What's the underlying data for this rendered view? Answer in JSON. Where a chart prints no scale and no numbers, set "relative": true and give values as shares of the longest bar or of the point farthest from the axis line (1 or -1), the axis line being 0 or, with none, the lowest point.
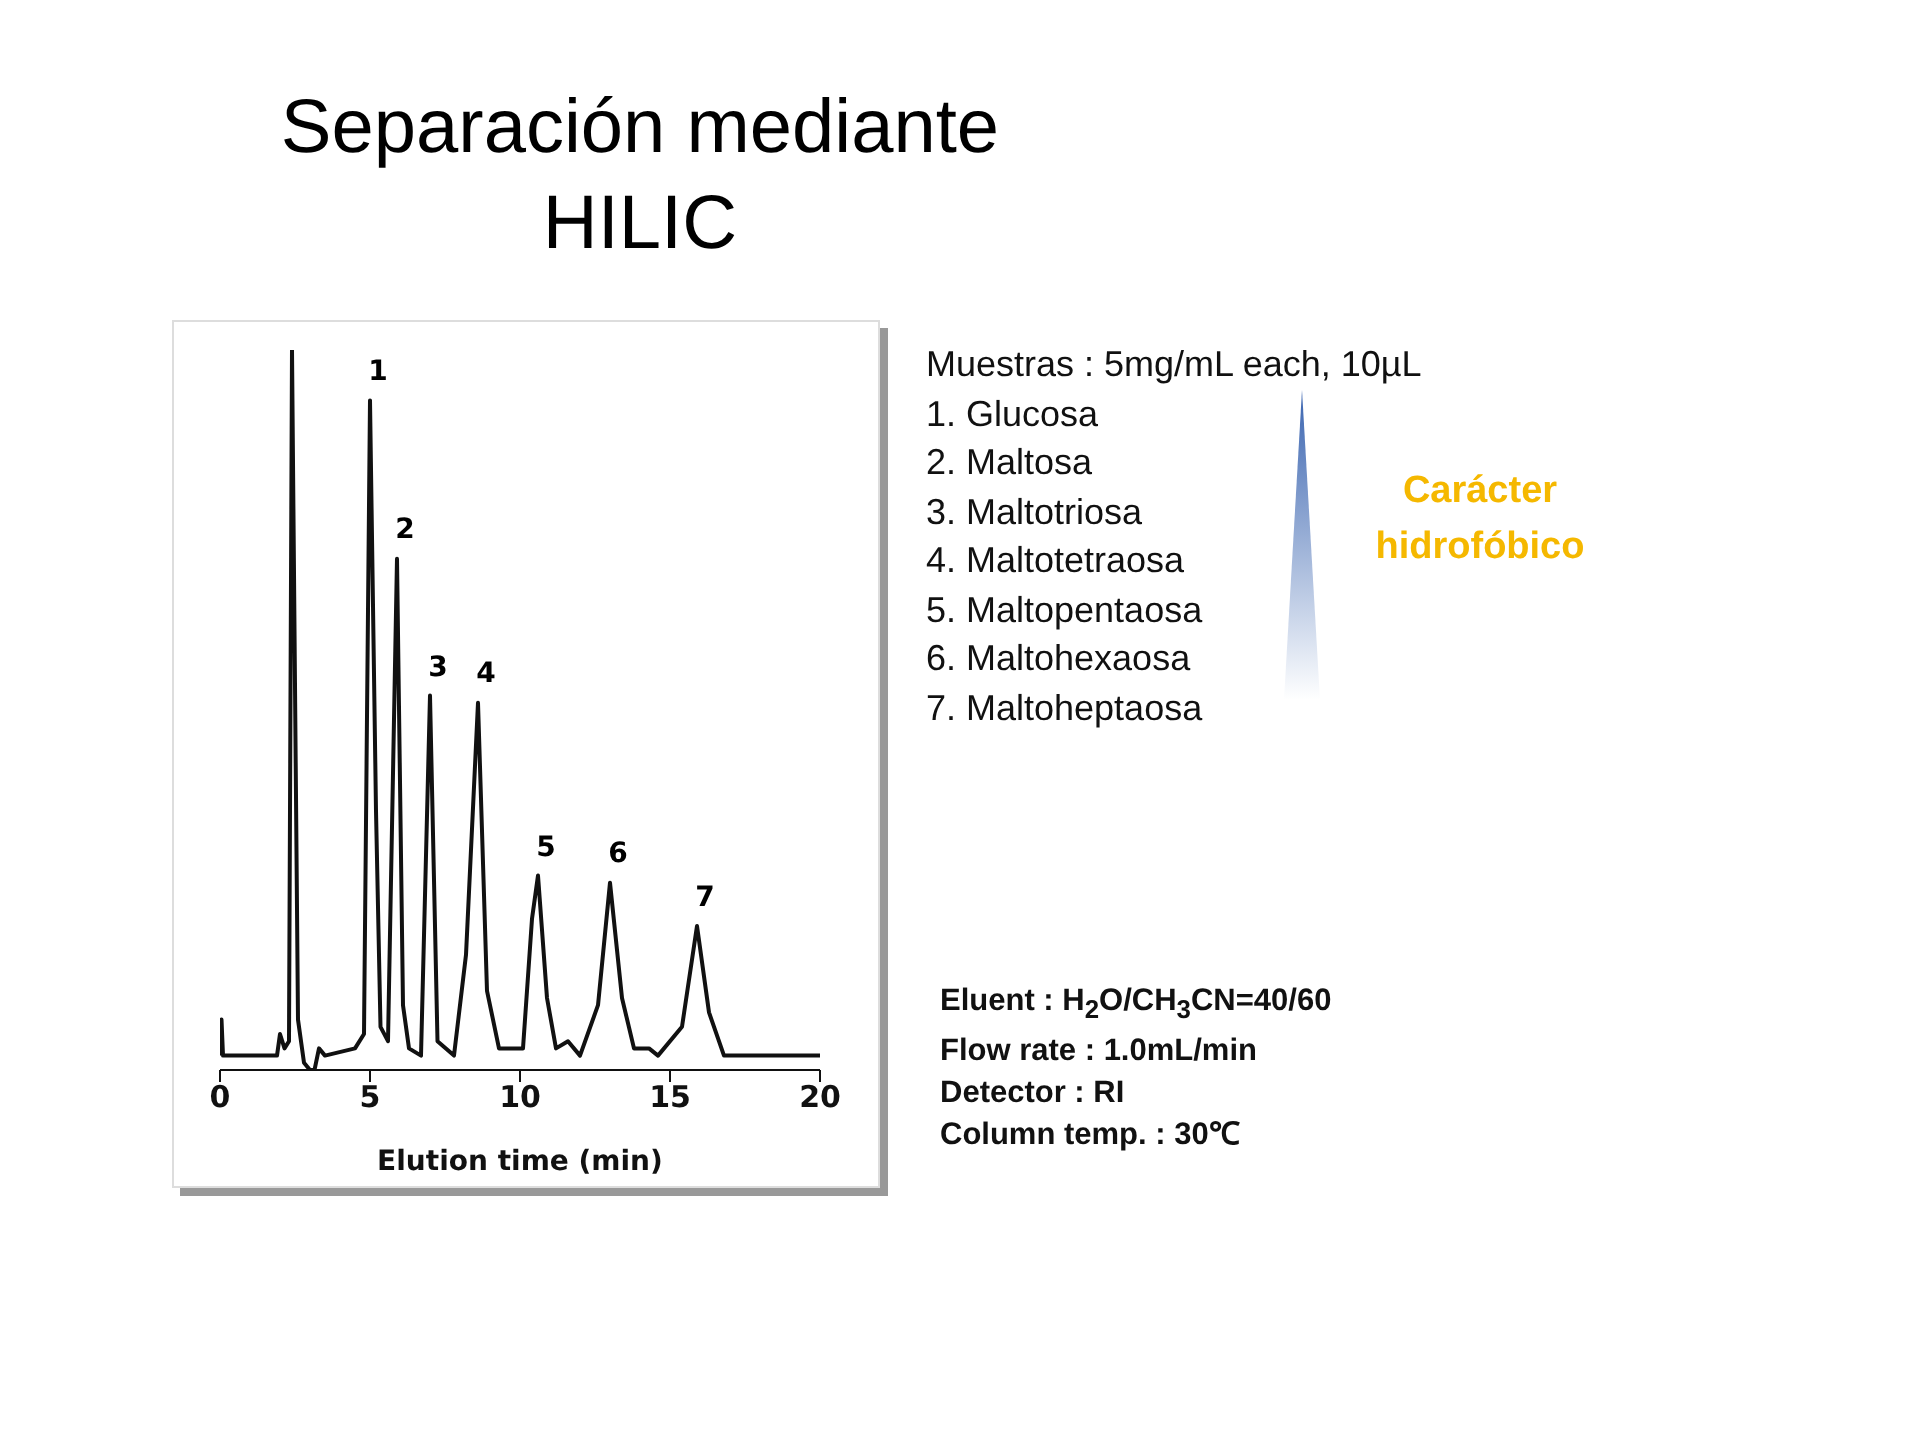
{
  "chart_data": {
    "type": "line",
    "title": "Separación mediante HILIC",
    "xlabel": "Elution time (min)",
    "relative": true,
    "xlim": [
      0,
      20
    ],
    "xticks": [
      0,
      5,
      10,
      15,
      20
    ],
    "marker": "none",
    "line_style": "solid",
    "x": [
      0,
      0.05,
      0.1,
      1.9,
      2.0,
      2.15,
      2.3,
      2.4,
      2.6,
      2.8,
      3.0,
      3.15,
      3.3,
      3.5,
      4.5,
      4.8,
      5.0,
      5.2,
      5.35,
      5.6,
      5.9,
      6.1,
      6.3,
      6.7,
      7.0,
      7.25,
      7.8,
      8.2,
      8.6,
      8.9,
      9.3,
      10.1,
      10.4,
      10.6,
      10.9,
      11.2,
      11.6,
      12.0,
      12.6,
      13.0,
      13.4,
      13.8,
      14.3,
      14.6,
      15.4,
      15.9,
      16.3,
      16.8,
      18.0,
      20
    ],
    "series": [
      {
        "color": "#111111",
        "values": [
          0.02,
          0.07,
          0.02,
          0.02,
          0.05,
          0.03,
          0.04,
          1.0,
          0.07,
          0.01,
          0,
          0,
          0.03,
          0.02,
          0.03,
          0.05,
          0.93,
          0.36,
          0.06,
          0.04,
          0.71,
          0.09,
          0.03,
          0.02,
          0.52,
          0.04,
          0.02,
          0.16,
          0.51,
          0.11,
          0.03,
          0.03,
          0.21,
          0.27,
          0.1,
          0.03,
          0.04,
          0.02,
          0.09,
          0.26,
          0.1,
          0.03,
          0.03,
          0.02,
          0.06,
          0.2,
          0.08,
          0.02,
          0.02,
          0.02
        ]
      }
    ],
    "annotations": [
      {
        "text": "1",
        "x": 5.0,
        "y": 0.93
      },
      {
        "text": "2",
        "x": 5.9,
        "y": 0.71
      },
      {
        "text": "3",
        "x": 7.0,
        "y": 0.52
      },
      {
        "text": "4",
        "x": 8.6,
        "y": 0.51
      },
      {
        "text": "5",
        "x": 10.6,
        "y": 0.27
      },
      {
        "text": "6",
        "x": 13.0,
        "y": 0.26
      },
      {
        "text": "7",
        "x": 15.9,
        "y": 0.2
      },
      "Muestras : 5mg/mL each, 10µL",
      "1. Glucosa",
      "2. Maltosa",
      "3. Maltotriosa",
      "4. Maltotetraosa",
      "5. Maltopentaosa",
      "6. Maltohexaosa",
      "7. Maltoheptaosa",
      "Carácter hidrofóbico",
      "Eluent : H$_{2}$O/CH$_{3}$CN=40/60",
      "Flow rate : 1.0mL/min",
      "Detector : RI",
      "Column temp. : 30℃"
    ]
  }
}
